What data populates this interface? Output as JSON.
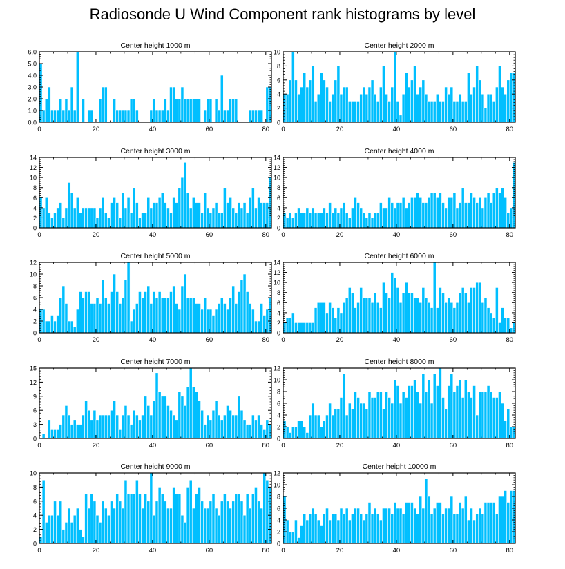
{
  "title": "Radiosonde U Wind Component rank histograms by level",
  "colors": {
    "bar": "#00BFFF",
    "bar_edge": "#ffffff",
    "axis": "#000000"
  },
  "chart_data": [
    {
      "type": "bar",
      "title": "Center height 1000 m",
      "xlabel": "",
      "ylabel": "",
      "xlim": [
        0,
        82
      ],
      "ylim": [
        0,
        6
      ],
      "xticks": [
        0,
        20,
        40,
        60,
        80
      ],
      "yticks": [
        0,
        1,
        2,
        3,
        4,
        5,
        6
      ],
      "ytick_labels": [
        "0.0",
        "1.0",
        "2.0",
        "3.0",
        "4.0",
        "5.0",
        "6.0"
      ],
      "values": [
        5,
        1,
        2,
        3,
        1,
        1,
        1,
        2,
        1,
        2,
        1,
        3,
        1,
        6,
        0,
        2,
        0,
        1,
        1,
        0,
        0,
        2,
        3,
        3,
        0,
        0,
        2,
        1,
        1,
        1,
        1,
        1,
        2,
        2,
        1,
        0,
        0,
        0,
        0,
        1,
        2,
        1,
        1,
        1,
        2,
        1,
        3,
        3,
        2,
        2,
        3,
        2,
        2,
        2,
        2,
        2,
        2,
        0,
        1,
        2,
        2,
        0,
        2,
        1,
        4,
        1,
        1,
        2,
        2,
        2,
        0,
        0,
        0,
        0,
        1,
        1,
        1,
        1,
        1,
        0,
        3,
        3
      ]
    },
    {
      "type": "bar",
      "title": "Center height 2000 m",
      "xlabel": "",
      "ylabel": "",
      "xlim": [
        0,
        82
      ],
      "ylim": [
        0,
        10
      ],
      "xticks": [
        0,
        20,
        40,
        60,
        80
      ],
      "yticks": [
        0,
        2,
        4,
        6,
        8,
        10
      ],
      "ytick_labels": [
        "0",
        "2",
        "4",
        "6",
        "8",
        "10"
      ],
      "values": [
        4,
        4,
        6,
        10,
        6,
        4,
        5,
        7,
        5,
        6,
        8,
        3,
        4,
        7,
        6,
        5,
        3,
        4,
        6,
        8,
        4,
        5,
        5,
        3,
        3,
        3,
        3,
        4,
        5,
        4,
        5,
        6,
        4,
        3,
        5,
        8,
        4,
        3,
        5,
        10,
        3,
        1,
        4,
        7,
        5,
        6,
        8,
        4,
        5,
        6,
        4,
        3,
        3,
        3,
        4,
        3,
        3,
        5,
        4,
        5,
        3,
        3,
        4,
        3,
        3,
        7,
        4,
        5,
        8,
        6,
        4,
        2,
        4,
        4,
        3,
        5,
        8,
        5,
        4,
        6,
        7,
        7
      ]
    },
    {
      "type": "bar",
      "title": "Center height 3000 m",
      "xlabel": "",
      "ylabel": "",
      "xlim": [
        0,
        82
      ],
      "ylim": [
        0,
        14
      ],
      "xticks": [
        0,
        20,
        40,
        60,
        80
      ],
      "yticks": [
        0,
        2,
        4,
        6,
        8,
        10,
        12,
        14
      ],
      "ytick_labels": [
        "0",
        "2",
        "4",
        "6",
        "8",
        "10",
        "12",
        "14"
      ],
      "values": [
        6,
        4,
        6,
        3,
        2,
        3,
        4,
        5,
        2,
        4,
        9,
        7,
        4,
        6,
        3,
        4,
        4,
        4,
        4,
        4,
        2,
        4,
        6,
        3,
        2,
        5,
        6,
        5,
        2,
        7,
        4,
        6,
        3,
        8,
        5,
        2,
        3,
        3,
        6,
        4,
        5,
        5,
        6,
        7,
        5,
        4,
        3,
        6,
        5,
        8,
        10,
        13,
        7,
        4,
        6,
        5,
        5,
        3,
        7,
        4,
        3,
        4,
        5,
        3,
        3,
        8,
        5,
        6,
        4,
        3,
        5,
        4,
        5,
        3,
        6,
        8,
        4,
        6,
        5,
        5,
        5,
        10
      ]
    },
    {
      "type": "bar",
      "title": "Center height 4000 m",
      "xlabel": "",
      "ylabel": "",
      "xlim": [
        0,
        82
      ],
      "ylim": [
        0,
        14
      ],
      "xticks": [
        0,
        20,
        40,
        60,
        80
      ],
      "yticks": [
        0,
        2,
        4,
        6,
        8,
        10,
        12,
        14
      ],
      "ytick_labels": [
        "0",
        "2",
        "4",
        "6",
        "8",
        "10",
        "12",
        "14"
      ],
      "values": [
        3,
        2,
        3,
        2,
        3,
        4,
        3,
        3,
        4,
        3,
        4,
        3,
        3,
        3,
        4,
        3,
        5,
        3,
        4,
        3,
        4,
        5,
        3,
        2,
        4,
        6,
        5,
        4,
        3,
        2,
        3,
        2,
        3,
        3,
        5,
        4,
        4,
        6,
        5,
        4,
        5,
        5,
        6,
        4,
        5,
        6,
        6,
        7,
        6,
        5,
        5,
        6,
        7,
        7,
        6,
        7,
        5,
        4,
        6,
        6,
        7,
        4,
        5,
        8,
        5,
        5,
        7,
        6,
        5,
        6,
        4,
        6,
        7,
        5,
        7,
        8,
        7,
        8,
        6,
        3,
        4,
        13
      ]
    },
    {
      "type": "bar",
      "title": "Center height 5000 m",
      "xlabel": "",
      "ylabel": "",
      "xlim": [
        0,
        82
      ],
      "ylim": [
        0,
        12
      ],
      "xticks": [
        0,
        20,
        40,
        60,
        80
      ],
      "yticks": [
        0,
        2,
        4,
        6,
        8,
        10,
        12
      ],
      "ytick_labels": [
        "0",
        "2",
        "4",
        "6",
        "8",
        "10",
        "12"
      ],
      "values": [
        4,
        4,
        2,
        2,
        3,
        2,
        3,
        6,
        8,
        5,
        2,
        2,
        1,
        4,
        7,
        6,
        7,
        7,
        5,
        5,
        6,
        5,
        9,
        6,
        5,
        7,
        10,
        7,
        5,
        6,
        9,
        12,
        2,
        4,
        5,
        7,
        6,
        7,
        8,
        5,
        7,
        6,
        7,
        6,
        6,
        6,
        7,
        8,
        5,
        4,
        8,
        10,
        6,
        6,
        6,
        5,
        5,
        4,
        6,
        4,
        4,
        3,
        4,
        5,
        6,
        5,
        4,
        6,
        8,
        5,
        7,
        9,
        10,
        7,
        5,
        4,
        2,
        2,
        5,
        3,
        4,
        6
      ]
    },
    {
      "type": "bar",
      "title": "Center height 6000 m",
      "xlabel": "",
      "ylabel": "",
      "xlim": [
        0,
        82
      ],
      "ylim": [
        0,
        14
      ],
      "xticks": [
        0,
        20,
        40,
        60,
        80
      ],
      "yticks": [
        0,
        2,
        4,
        6,
        8,
        10,
        12,
        14
      ],
      "ytick_labels": [
        "0",
        "2",
        "4",
        "6",
        "8",
        "10",
        "12",
        "14"
      ],
      "values": [
        2,
        3,
        3,
        4,
        2,
        2,
        2,
        2,
        2,
        2,
        2,
        5,
        6,
        6,
        6,
        4,
        6,
        5,
        3,
        5,
        4,
        6,
        7,
        9,
        8,
        5,
        6,
        9,
        7,
        7,
        7,
        6,
        8,
        6,
        5,
        10,
        8,
        7,
        12,
        11,
        9,
        6,
        8,
        10,
        8,
        8,
        7,
        7,
        6,
        9,
        7,
        6,
        5,
        14,
        5,
        9,
        8,
        6,
        7,
        6,
        5,
        6,
        8,
        9,
        8,
        6,
        9,
        9,
        10,
        10,
        6,
        7,
        5,
        4,
        3,
        9,
        2,
        5,
        3,
        3,
        1,
        2
      ]
    },
    {
      "type": "bar",
      "title": "Center height 7000 m",
      "xlabel": "",
      "ylabel": "",
      "xlim": [
        0,
        82
      ],
      "ylim": [
        0,
        15
      ],
      "xticks": [
        0,
        20,
        40,
        60,
        80
      ],
      "yticks": [
        0,
        3,
        6,
        9,
        12,
        15
      ],
      "ytick_labels": [
        "0",
        "3",
        "6",
        "9",
        "12",
        "15"
      ],
      "values": [
        0,
        1,
        0,
        4,
        2,
        2,
        2,
        3,
        5,
        7,
        5,
        3,
        4,
        3,
        3,
        5,
        8,
        6,
        4,
        6,
        4,
        5,
        5,
        5,
        5,
        6,
        8,
        5,
        2,
        5,
        7,
        5,
        3,
        6,
        5,
        4,
        5,
        9,
        7,
        5,
        8,
        14,
        10,
        9,
        9,
        7,
        6,
        5,
        4,
        10,
        9,
        7,
        11,
        15,
        11,
        10,
        8,
        6,
        3,
        5,
        4,
        6,
        8,
        5,
        4,
        5,
        7,
        6,
        5,
        5,
        9,
        6,
        4,
        3,
        3,
        5,
        4,
        5,
        3,
        2,
        4,
        3
      ]
    },
    {
      "type": "bar",
      "title": "Center height 8000 m",
      "xlabel": "",
      "ylabel": "",
      "xlim": [
        0,
        82
      ],
      "ylim": [
        0,
        12
      ],
      "xticks": [
        0,
        20,
        40,
        60,
        80
      ],
      "yticks": [
        0,
        2,
        4,
        6,
        8,
        10,
        12
      ],
      "ytick_labels": [
        "0",
        "2",
        "4",
        "6",
        "8",
        "10",
        "12"
      ],
      "values": [
        3,
        2,
        1,
        2,
        2,
        3,
        3,
        2,
        1,
        4,
        6,
        4,
        4,
        2,
        3,
        4,
        6,
        4,
        5,
        5,
        7,
        11,
        4,
        6,
        5,
        8,
        7,
        6,
        6,
        5,
        8,
        7,
        7,
        8,
        8,
        5,
        8,
        7,
        6,
        10,
        9,
        6,
        8,
        7,
        9,
        9,
        10,
        8,
        6,
        11,
        8,
        10,
        6,
        11,
        9,
        12,
        7,
        5,
        9,
        11,
        8,
        9,
        10,
        7,
        10,
        8,
        7,
        9,
        4,
        8,
        8,
        8,
        9,
        8,
        7,
        7,
        8,
        6,
        3,
        5,
        2,
        2
      ]
    },
    {
      "type": "bar",
      "title": "Center height 9000 m",
      "xlabel": "",
      "ylabel": "",
      "xlim": [
        0,
        82
      ],
      "ylim": [
        0,
        10
      ],
      "xticks": [
        0,
        20,
        40,
        60,
        80
      ],
      "yticks": [
        0,
        2,
        4,
        6,
        8,
        10
      ],
      "ytick_labels": [
        "0",
        "2",
        "4",
        "6",
        "8",
        "10"
      ],
      "values": [
        1,
        9,
        3,
        4,
        4,
        6,
        4,
        6,
        2,
        3,
        5,
        3,
        4,
        5,
        2,
        1,
        7,
        5,
        7,
        6,
        4,
        3,
        6,
        5,
        4,
        6,
        5,
        7,
        6,
        5,
        9,
        7,
        7,
        7,
        9,
        7,
        5,
        7,
        6,
        10,
        4,
        6,
        8,
        7,
        6,
        5,
        5,
        8,
        7,
        7,
        4,
        3,
        8,
        9,
        5,
        7,
        8,
        6,
        5,
        5,
        6,
        7,
        5,
        4,
        6,
        7,
        6,
        5,
        6,
        7,
        7,
        6,
        4,
        7,
        5,
        7,
        8,
        6,
        5,
        10,
        9,
        8
      ]
    },
    {
      "type": "bar",
      "title": "Center height 10000 m",
      "xlabel": "",
      "ylabel": "",
      "xlim": [
        0,
        82
      ],
      "ylim": [
        0,
        12
      ],
      "xticks": [
        0,
        20,
        40,
        60,
        80
      ],
      "yticks": [
        0,
        2,
        4,
        6,
        8,
        10,
        12
      ],
      "ytick_labels": [
        "0",
        "2",
        "4",
        "6",
        "8",
        "10",
        "12"
      ],
      "values": [
        8,
        4,
        2,
        2,
        4,
        1,
        3,
        5,
        4,
        5,
        6,
        5,
        4,
        3,
        5,
        6,
        4,
        5,
        5,
        4,
        6,
        5,
        6,
        4,
        5,
        6,
        6,
        5,
        4,
        5,
        7,
        5,
        6,
        5,
        4,
        6,
        6,
        6,
        5,
        7,
        6,
        6,
        5,
        7,
        7,
        7,
        6,
        5,
        8,
        6,
        11,
        8,
        5,
        6,
        7,
        7,
        5,
        6,
        6,
        8,
        5,
        5,
        7,
        6,
        8,
        4,
        6,
        4,
        5,
        6,
        5,
        7,
        7,
        7,
        7,
        5,
        8,
        8,
        9,
        7,
        9,
        9
      ]
    }
  ]
}
